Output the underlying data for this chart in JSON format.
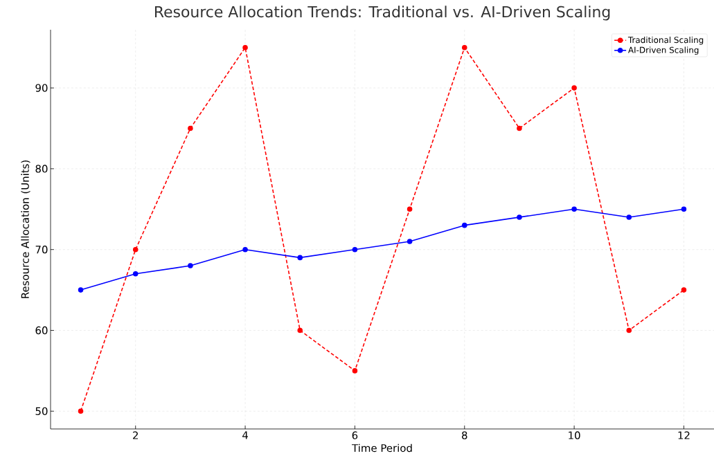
{
  "chart_data": {
    "type": "line",
    "title": "Resource Allocation Trends: Traditional vs. AI-Driven Scaling",
    "xlabel": "Time Period",
    "ylabel": "Resource Allocation (Units)",
    "x": [
      1,
      2,
      3,
      4,
      5,
      6,
      7,
      8,
      9,
      10,
      11,
      12
    ],
    "series": [
      {
        "name": "Traditional Scaling",
        "color": "#ff0000",
        "line_style": "dashed",
        "values": [
          50,
          70,
          85,
          95,
          60,
          55,
          75,
          95,
          85,
          90,
          60,
          65
        ]
      },
      {
        "name": "AI-Driven Scaling",
        "color": "#0000ff",
        "line_style": "solid",
        "values": [
          65,
          67,
          68,
          70,
          69,
          70,
          71,
          73,
          74,
          75,
          74,
          75
        ]
      }
    ],
    "xlim": [
      0.45,
      12.55
    ],
    "ylim": [
      47.8,
      97.2
    ],
    "xticks": [
      2,
      4,
      6,
      8,
      10,
      12
    ],
    "yticks": [
      50,
      60,
      70,
      80,
      90
    ],
    "grid": true,
    "legend": "top right",
    "marker": "circle"
  }
}
